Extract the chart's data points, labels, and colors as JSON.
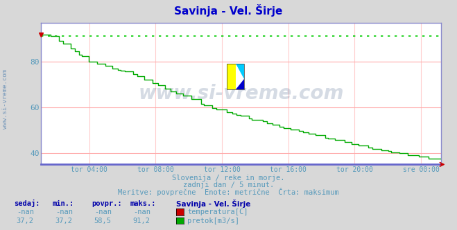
{
  "title": "Savinja - Vel. Širje",
  "title_color": "#0000cc",
  "background_color": "#d8d8d8",
  "plot_background_color": "#ffffff",
  "grid_color_h": "#ffaaaa",
  "grid_color_v": "#ffcccc",
  "watermark_text": "www.si-vreme.com",
  "watermark_color": "#1a3a6a",
  "watermark_alpha": 0.18,
  "tick_color": "#5599bb",
  "x_tick_labels": [
    "tor 04:00",
    "tor 08:00",
    "tor 12:00",
    "tor 16:00",
    "tor 20:00",
    "sre 00:00"
  ],
  "y_ticks": [
    40,
    60,
    80
  ],
  "ylim_min": 35,
  "ylim_max": 97,
  "max_line_value": 91.2,
  "max_line_color": "#00cc00",
  "flow_color": "#00aa00",
  "bottom_text1": "Slovenija / reke in morje.",
  "bottom_text2": "zadnji dan / 5 minut.",
  "bottom_text3": "Meritve: povprečne  Enote: metrične  Črta: maksimum",
  "bottom_text_color": "#5599bb",
  "legend_title": "Savinja - Vel. Širje",
  "legend_title_color": "#0000aa",
  "legend_items": [
    {
      "label": "temperatura[C]",
      "color": "#cc0000",
      "sedaj": "-nan",
      "min": "-nan",
      "povpr": "-nan",
      "maks": "-nan"
    },
    {
      "label": "pretok[m3/s]",
      "color": "#00aa00",
      "sedaj": "37,2",
      "min": "37,2",
      "povpr": "58,5",
      "maks": "91,2"
    }
  ],
  "col_headers": [
    "sedaj:",
    "min.:",
    "povpr.:",
    "maks.:"
  ],
  "table_header_color": "#0000aa",
  "table_value_color": "#5599bb",
  "spine_color": "#8888cc",
  "bottom_spine_color": "#6666cc",
  "left_label": "www.si-vreme.com"
}
